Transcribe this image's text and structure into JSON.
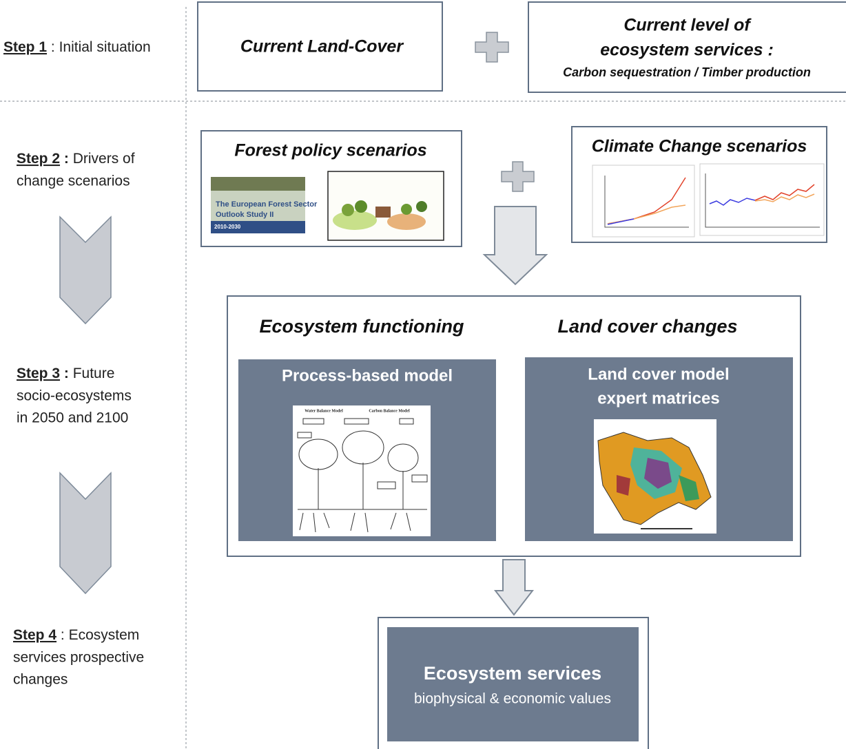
{
  "steps": [
    {
      "label": "Step 1",
      "separator": ":",
      "lines": [
        "Initial situation"
      ]
    },
    {
      "label": "Step 2",
      "separator": ":",
      "lines": [
        "Drivers of",
        "change scenarios"
      ]
    },
    {
      "label": "Step 3",
      "separator": ":",
      "lines": [
        "Future",
        "socio-ecosystems",
        "in 2050 and 2100"
      ]
    },
    {
      "label": "Step 4",
      "separator": ":",
      "lines": [
        "Ecosystem",
        "services prospective",
        "changes"
      ]
    }
  ],
  "initial": {
    "land_cover": "Current Land-Cover",
    "services_title": [
      "Current level of",
      "ecosystem services  :"
    ],
    "services_detail": "Carbon sequestration  /  Timber production"
  },
  "drivers": {
    "forest_policy": {
      "title": "Forest policy scenarios",
      "cover_title": [
        "The European Forest Sector",
        "Outlook Study II"
      ],
      "cover_years": "2010-2030"
    },
    "climate": {
      "title": "Climate Change scenarios"
    }
  },
  "future": {
    "ecosystem_functioning": {
      "title": "Ecosystem functioning",
      "model": "Process-based model",
      "diagram_labels": [
        "Water Balance Model",
        "Carbon Balance Model"
      ]
    },
    "land_cover": {
      "title": "Land cover changes",
      "model": [
        "Land cover model",
        "expert matrices"
      ]
    }
  },
  "outcome": {
    "title": "Ecosystem services",
    "subtitle": "biophysical & economic values"
  }
}
